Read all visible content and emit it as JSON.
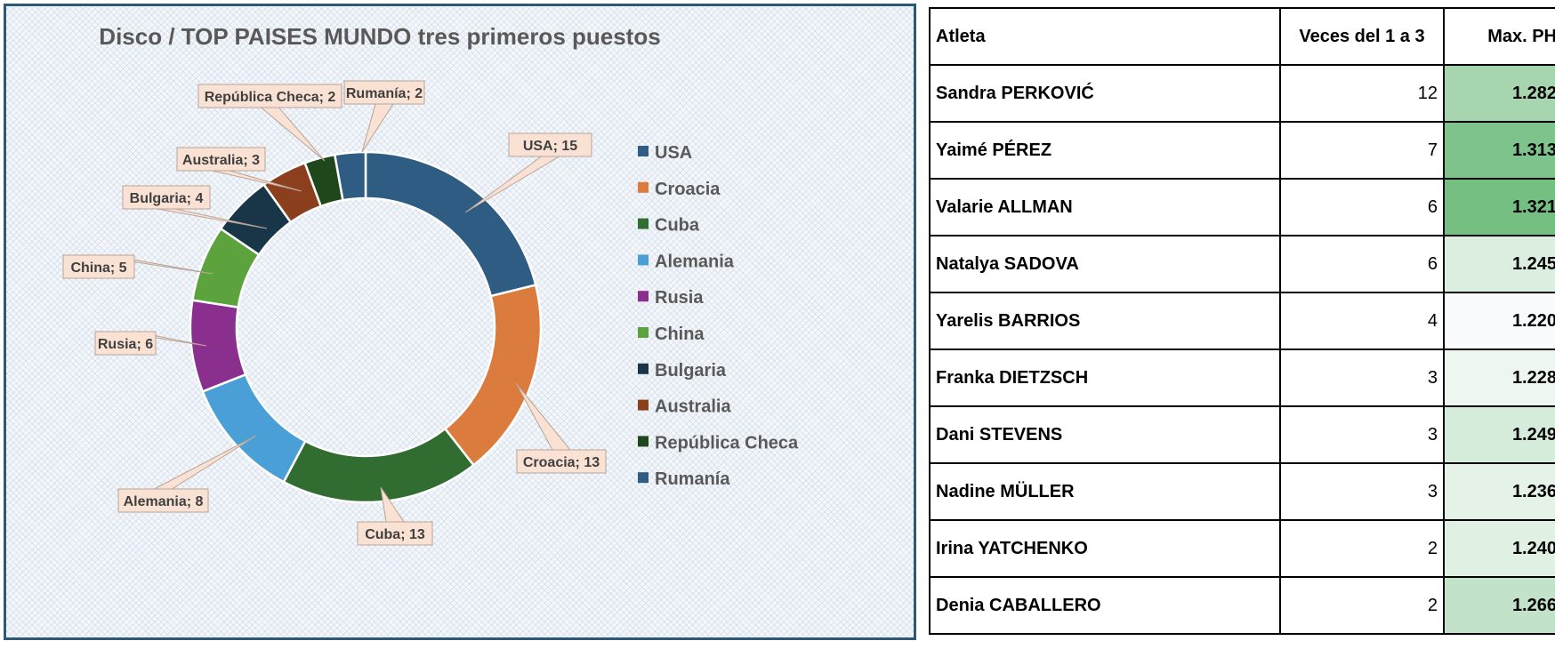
{
  "chart_data": {
    "type": "pie",
    "subtype": "doughnut",
    "title": "Disco / TOP PAISES MUNDO tres primeros puestos",
    "categories": [
      "USA",
      "Croacia",
      "Cuba",
      "Alemania",
      "Rusia",
      "China",
      "Bulgaria",
      "Australia",
      "República Checa",
      "Rumanía"
    ],
    "values": [
      15,
      13,
      13,
      8,
      6,
      5,
      4,
      3,
      2,
      2
    ],
    "colors": [
      "#2e5c82",
      "#dc7b3e",
      "#316d30",
      "#4a9fd6",
      "#8a2f8e",
      "#5da33d",
      "#193649",
      "#8c3f1c",
      "#1e471c",
      "#2e5c82"
    ],
    "data_labels": [
      "USA; 15",
      "Croacia; 13",
      "Cuba; 13",
      "Alemania; 8",
      "Rusia; 6",
      "China; 5",
      "Bulgaria; 4",
      "Australia; 3",
      "República Checa; 2",
      "Rumanía; 2"
    ],
    "legend": "right"
  },
  "table": {
    "headers": {
      "name": "Atleta",
      "times": "Veces del 1 a 3",
      "max": "Max. PH"
    },
    "rows": [
      {
        "name": "Sandra PERKOVIĆ",
        "times": "12",
        "max": "1.282",
        "max_color": "#a7d5b0"
      },
      {
        "name": "Yaimé PÉREZ",
        "times": "7",
        "max": "1.313",
        "max_color": "#7fc38c"
      },
      {
        "name": "Valarie ALLMAN",
        "times": "6",
        "max": "1.321",
        "max_color": "#75bf83"
      },
      {
        "name": "Natalya SADOVA",
        "times": "6",
        "max": "1.245",
        "max_color": "#dbeedf"
      },
      {
        "name": "Yarelis BARRIOS",
        "times": "4",
        "max": "1.220",
        "max_color": "#f9fbfd"
      },
      {
        "name": "Franka DIETZSCH",
        "times": "3",
        "max": "1.228",
        "max_color": "#edf6ef"
      },
      {
        "name": "Dani STEVENS",
        "times": "3",
        "max": "1.249",
        "max_color": "#d6ecdb"
      },
      {
        "name": "Nadine MÜLLER",
        "times": "3",
        "max": "1.236",
        "max_color": "#e4f2e7"
      },
      {
        "name": "Irina YATCHENKO",
        "times": "2",
        "max": "1.240",
        "max_color": "#e0f0e3"
      },
      {
        "name": "Denia CABALLERO",
        "times": "2",
        "max": "1.266",
        "max_color": "#c2e2c9"
      }
    ]
  }
}
